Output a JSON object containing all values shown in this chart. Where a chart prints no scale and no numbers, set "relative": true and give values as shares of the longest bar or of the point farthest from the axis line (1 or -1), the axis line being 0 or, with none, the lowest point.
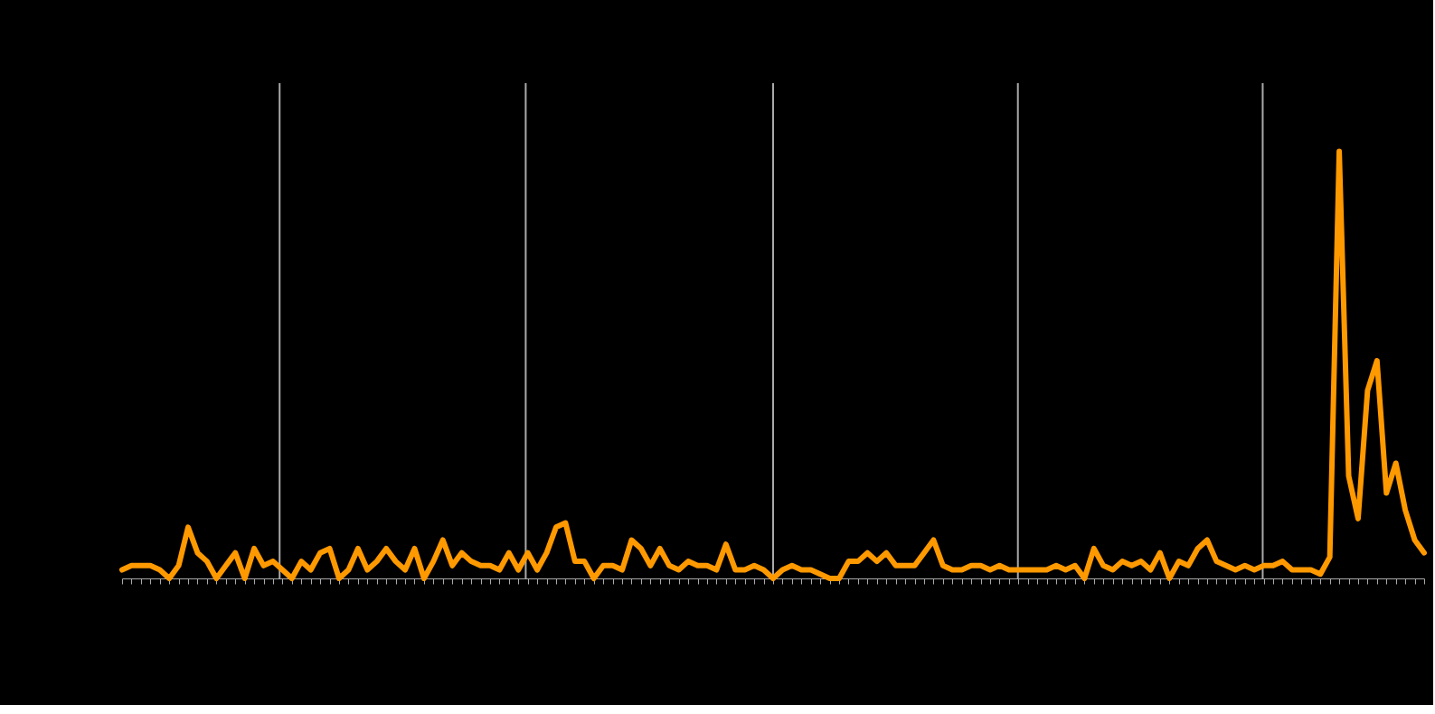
{
  "chart_data": {
    "type": "line",
    "relative": true,
    "grid": false,
    "marker": "none",
    "line_style": "solid",
    "categories": [
      null,
      null,
      null,
      null,
      null,
      null,
      null,
      null,
      null,
      null,
      null,
      null,
      null,
      null,
      null,
      null,
      null,
      null,
      null,
      null,
      null,
      null,
      null,
      null,
      null,
      null,
      null,
      null,
      null,
      null,
      null,
      null,
      null,
      null,
      null,
      null,
      null,
      null,
      null,
      null,
      null,
      null,
      null,
      null,
      null,
      null,
      null,
      null,
      null,
      null,
      null,
      null,
      null,
      null,
      null,
      null,
      null,
      null,
      null,
      null,
      null,
      null,
      null,
      null,
      null,
      null,
      null,
      null,
      null,
      null,
      null,
      null,
      null,
      null,
      null,
      null,
      null,
      null,
      null,
      null,
      null,
      null,
      null,
      null,
      null,
      null,
      null,
      null,
      null,
      null,
      null,
      null,
      null,
      null,
      null,
      null,
      null,
      null,
      null,
      null,
      null,
      null,
      null,
      null,
      null,
      null,
      null,
      null,
      null,
      null,
      null,
      null,
      null,
      null,
      null,
      null,
      null,
      null,
      null,
      null,
      null,
      null,
      null,
      null,
      null,
      null,
      null,
      null,
      null,
      null,
      null,
      null,
      null,
      null,
      null,
      null,
      null,
      null,
      null
    ],
    "series": [
      {
        "color": "#ff9900",
        "values": [
          0.02,
          0.03,
          0.03,
          0.03,
          0.02,
          0,
          0.03,
          0.12,
          0.06,
          0.04,
          0,
          0.03,
          0.06,
          0,
          0.07,
          0.03,
          0.04,
          0.02,
          0,
          0.04,
          0.02,
          0.06,
          0.07,
          0,
          0.02,
          0.07,
          0.02,
          0.04,
          0.07,
          0.04,
          0.02,
          0.07,
          0,
          0.04,
          0.09,
          0.03,
          0.06,
          0.04,
          0.03,
          0.03,
          0.02,
          0.06,
          0.02,
          0.06,
          0.02,
          0.06,
          0.12,
          0.13,
          0.04,
          0.04,
          0,
          0.03,
          0.03,
          0.02,
          0.09,
          0.07,
          0.03,
          0.07,
          0.03,
          0.02,
          0.04,
          0.03,
          0.03,
          0.02,
          0.08,
          0.02,
          0.02,
          0.03,
          0.02,
          0,
          0.02,
          0.03,
          0.02,
          0.02,
          0.01,
          0,
          0,
          0.04,
          0.04,
          0.06,
          0.04,
          0.06,
          0.03,
          0.03,
          0.03,
          0.06,
          0.09,
          0.03,
          0.02,
          0.02,
          0.03,
          0.03,
          0.02,
          0.03,
          0.02,
          0.02,
          0.02,
          0.02,
          0.02,
          0.03,
          0.02,
          0.03,
          0,
          0.07,
          0.03,
          0.02,
          0.04,
          0.03,
          0.04,
          0.02,
          0.06,
          0,
          0.04,
          0.03,
          0.07,
          0.09,
          0.04,
          0.03,
          0.02,
          0.03,
          0.02,
          0.03,
          0.03,
          0.04,
          0.02,
          0.02,
          0.02,
          0.01,
          0.05,
          1.0,
          0.24,
          0.14,
          0.44,
          0.51,
          0.2,
          0.27,
          0.16,
          0.09,
          0.06
        ]
      }
    ]
  }
}
